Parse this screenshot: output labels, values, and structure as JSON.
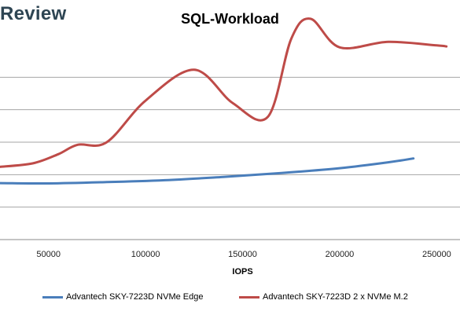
{
  "brand": "Review",
  "chart_data": {
    "type": "line",
    "title": "SQL-Workload",
    "xlabel": "IOPS",
    "ylabel": "",
    "xlim": [
      25000,
      262000
    ],
    "x_ticks": [
      50000,
      100000,
      150000,
      200000,
      250000
    ],
    "x_tick_labels": [
      "50000",
      "100000",
      "150000",
      "200000",
      "250000"
    ],
    "grid": "horizontal",
    "legend": "bottom",
    "series": [
      {
        "name": "Advantech SKY-7223D NVMe Edge",
        "color": "#4a7ebb",
        "points": [
          [
            25000,
            1.74
          ],
          [
            50000,
            1.73
          ],
          [
            80000,
            1.77
          ],
          [
            110000,
            1.83
          ],
          [
            140000,
            1.93
          ],
          [
            170000,
            2.05
          ],
          [
            200000,
            2.2
          ],
          [
            225000,
            2.38
          ],
          [
            238000,
            2.5
          ]
        ]
      },
      {
        "name": "Advantech SKY-7223D 2 x NVMe M.2",
        "color": "#be4b48",
        "points": [
          [
            25000,
            2.24
          ],
          [
            42000,
            2.35
          ],
          [
            55000,
            2.63
          ],
          [
            65000,
            2.92
          ],
          [
            80000,
            3.0
          ],
          [
            100000,
            4.28
          ],
          [
            125000,
            5.23
          ],
          [
            145000,
            4.2
          ],
          [
            163000,
            3.78
          ],
          [
            175000,
            6.18
          ],
          [
            185000,
            6.8
          ],
          [
            200000,
            5.92
          ],
          [
            225000,
            6.09
          ],
          [
            250000,
            5.98
          ],
          [
            255000,
            5.95
          ]
        ]
      }
    ]
  }
}
